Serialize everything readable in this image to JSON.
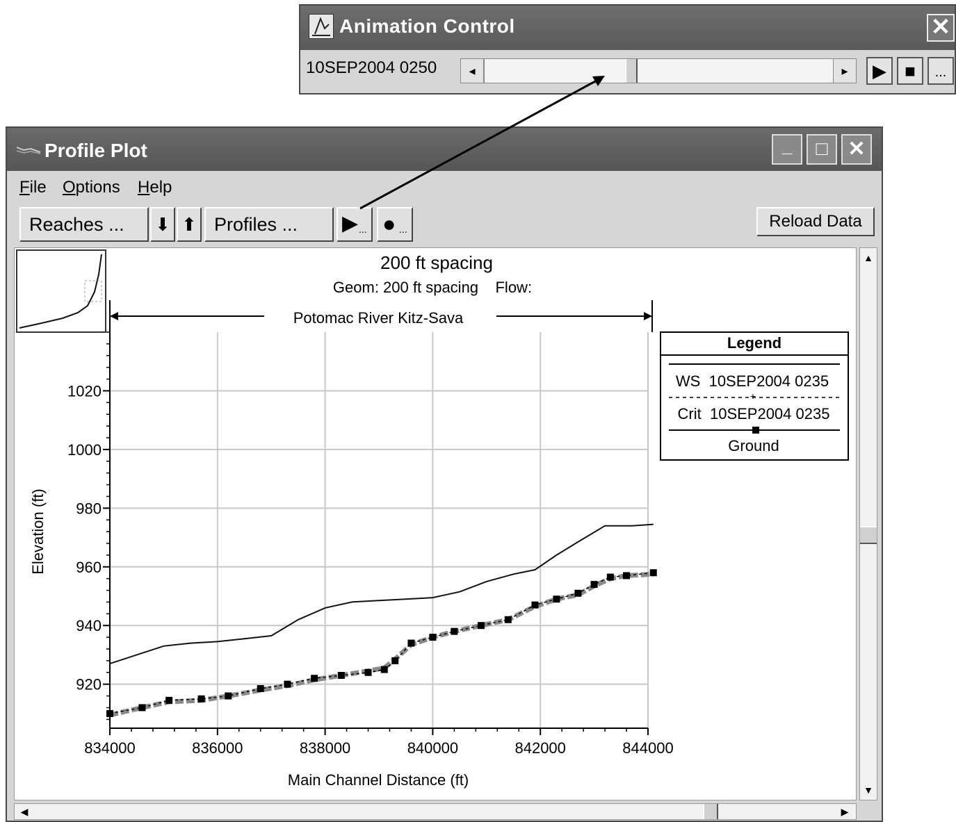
{
  "animation_control": {
    "title": "Animation Control",
    "current_time": "10SEP2004 0250",
    "slider_position": 0.4,
    "buttons": {
      "close": "✕",
      "left": "◂",
      "right": "▸",
      "play": "▶",
      "stop": "■",
      "more": "..."
    }
  },
  "profile_plot": {
    "title": "Profile Plot",
    "menu": [
      {
        "label": "File",
        "accel": "F",
        "rest": "ile"
      },
      {
        "label": "Options",
        "accel": "O",
        "rest": "ptions"
      },
      {
        "label": "Help",
        "accel": "H",
        "rest": "elp"
      }
    ],
    "toolbar": {
      "reaches": "Reaches ...",
      "down": "⬇",
      "up": "⬆",
      "profiles": "Profiles ...",
      "animate": "▶",
      "animate_sub": "...",
      "record": "●",
      "record_sub": "...",
      "reload": "Reload Data"
    },
    "window_buttons": {
      "minimize": "_",
      "maximize": "□",
      "close": "✕"
    }
  },
  "chart_data": {
    "type": "line",
    "title": "200 ft spacing",
    "subtitle": "Geom: 200 ft spacing    Flow:",
    "reach_label": "Potomac River Kitz-Sava",
    "xlabel": "Main Channel Distance (ft)",
    "ylabel": "Elevation (ft)",
    "xlim": [
      834000,
      844000
    ],
    "ylim": [
      905,
      1040
    ],
    "x_ticks": [
      834000,
      836000,
      838000,
      840000,
      842000,
      844000
    ],
    "y_ticks": [
      920,
      940,
      960,
      980,
      1000,
      1020
    ],
    "grid": true,
    "legend": {
      "title": "Legend",
      "entries": [
        "WS  10SEP2004 0235",
        "Crit  10SEP2004 0235",
        "Ground"
      ],
      "placement": "right"
    },
    "series": [
      {
        "name": "WS  10SEP2004 0235",
        "color": "#111111",
        "x": [
          834000,
          834500,
          835000,
          835500,
          836000,
          836500,
          837000,
          837500,
          838000,
          838500,
          839000,
          839500,
          840000,
          840500,
          841000,
          841500,
          841900,
          842300,
          842700,
          843200,
          843700,
          844100
        ],
        "y": [
          927,
          930,
          933,
          934,
          934.5,
          935.5,
          936.5,
          942,
          946,
          948,
          948.5,
          949,
          949.5,
          951.5,
          955,
          957.5,
          959,
          964,
          968.5,
          974,
          974,
          974.5
        ]
      },
      {
        "name": "Crit  10SEP2004 0235",
        "color": "#000000",
        "x": [
          834000,
          834600,
          835100,
          835700,
          836200,
          836800,
          837300,
          837800,
          838300,
          838800,
          839100,
          839300,
          839600,
          840000,
          840400,
          840900,
          841400,
          841900,
          842300,
          842700,
          843000,
          843300,
          843600,
          844100
        ],
        "y": [
          910,
          912,
          914.5,
          915,
          916,
          918.5,
          920,
          922,
          923,
          924,
          925,
          928,
          934,
          936,
          938,
          940,
          942,
          947,
          949,
          951,
          954,
          956.5,
          957,
          958
        ]
      },
      {
        "name": "Ground",
        "color": "#8a8a8a",
        "x": [
          834000,
          834600,
          835100,
          835700,
          836200,
          836800,
          837300,
          837800,
          838300,
          838800,
          839100,
          839300,
          839600,
          840000,
          840400,
          840900,
          841400,
          841900,
          842300,
          842700,
          843000,
          843300,
          843600,
          844100
        ],
        "y": [
          909.5,
          912,
          914,
          914.5,
          916,
          918,
          919.5,
          921.5,
          923,
          924.5,
          925.5,
          928.5,
          933.5,
          936,
          938,
          940,
          942,
          946.5,
          949,
          950.5,
          953.5,
          956,
          957,
          957.5
        ]
      }
    ]
  }
}
